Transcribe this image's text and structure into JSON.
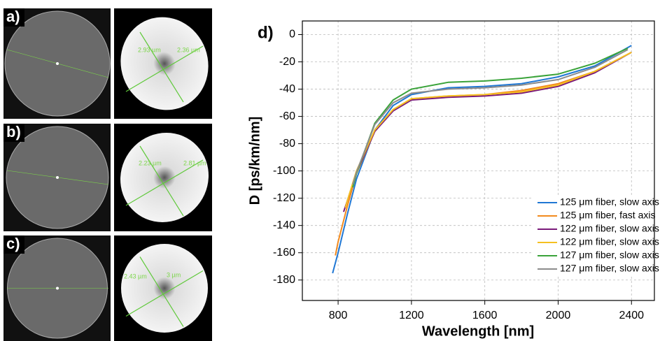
{
  "panels": [
    {
      "label": "a)",
      "measurements": [
        "2.93 µm",
        "2.36 µm"
      ]
    },
    {
      "label": "b)",
      "measurements": [
        "2.23 µm",
        "2.81 µm"
      ]
    },
    {
      "label": "c)",
      "measurements": [
        "2.43 µm",
        "3 µm"
      ]
    }
  ],
  "chart_data": {
    "type": "line",
    "panel_label": "d)",
    "x_label": "Wavelength [nm]",
    "y_label": "D [ps/km/nm]",
    "xlim": [
      605,
      2525
    ],
    "ylim": [
      -195,
      10
    ],
    "xticks": [
      800,
      1200,
      1600,
      2000,
      2400
    ],
    "yticks": [
      0,
      -20,
      -40,
      -60,
      -80,
      -100,
      -120,
      -140,
      -160,
      -180
    ],
    "grid": true,
    "legend": "lower right",
    "series": [
      {
        "name": "125 μm fiber, slow axis",
        "color": "#1f77d4",
        "x": [
          770,
          800,
          850,
          900,
          1000,
          1100,
          1200,
          1400,
          1600,
          1800,
          2000,
          2200,
          2400
        ],
        "values": [
          -175,
          -160,
          -132,
          -106,
          -70,
          -52,
          -44,
          -39,
          -38,
          -36,
          -31,
          -23,
          -8
        ]
      },
      {
        "name": "125 μm fiber, fast axis",
        "color": "#f28a1e",
        "x": [
          785,
          800,
          850,
          900,
          1000,
          1100,
          1200,
          1400,
          1600,
          1800,
          2000,
          2200,
          2400
        ],
        "values": [
          -162,
          -152,
          -126,
          -102,
          -71,
          -55,
          -47,
          -45,
          -44,
          -41,
          -36,
          -27,
          -13
        ]
      },
      {
        "name": "122 μm fiber, slow axis",
        "color": "#7a1a7a",
        "x": [
          830,
          850,
          900,
          1000,
          1100,
          1200,
          1400,
          1600,
          1800,
          2000,
          2200,
          2400
        ],
        "values": [
          -130,
          -122,
          -101,
          -71,
          -56,
          -48,
          -46,
          -45,
          -43,
          -38,
          -28,
          -13
        ]
      },
      {
        "name": "122 μm fiber, slow axis",
        "color": "#f5c020",
        "x": [
          840,
          850,
          900,
          1000,
          1100,
          1200,
          1400,
          1600,
          1800,
          2000,
          2200,
          2400
        ],
        "values": [
          -127,
          -122,
          -100,
          -70,
          -55,
          -47,
          -45,
          -44,
          -42,
          -37,
          -27,
          -13
        ]
      },
      {
        "name": "127 μm fiber, slow axis",
        "color": "#3aa33a",
        "x": [
          880,
          900,
          1000,
          1100,
          1200,
          1400,
          1600,
          1800,
          2000,
          2200,
          2380
        ],
        "values": [
          -112,
          -102,
          -65,
          -48,
          -40,
          -35,
          -34,
          -32,
          -29,
          -21,
          -10
        ]
      },
      {
        "name": "127 μm fiber, slow axis",
        "color": "#8c8c8c",
        "x": [
          880,
          900,
          1000,
          1100,
          1200,
          1400,
          1600,
          1800,
          2000,
          2200,
          2380
        ],
        "values": [
          -110,
          -101,
          -66,
          -50,
          -43,
          -40,
          -39,
          -37,
          -33,
          -24,
          -11
        ]
      }
    ]
  }
}
